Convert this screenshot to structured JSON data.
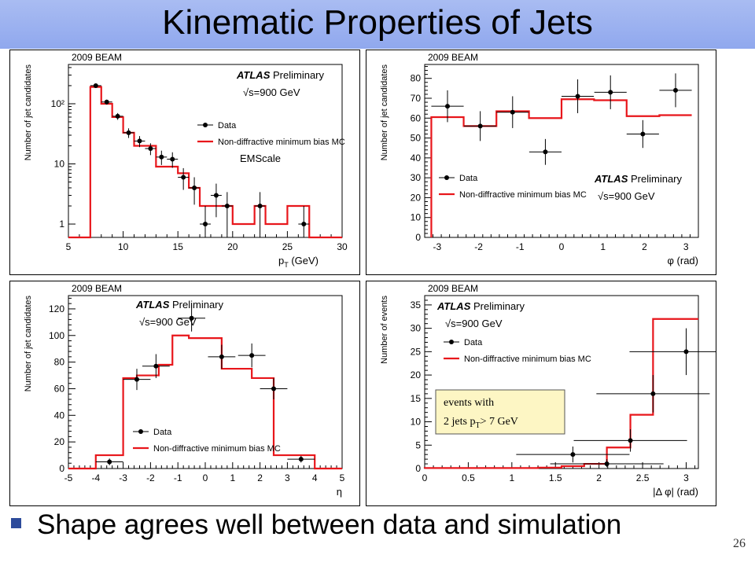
{
  "slide": {
    "title": "Kinematic Properties of Jets",
    "bullet": "Shape agrees well between data and simulation",
    "slide_number": "26"
  },
  "colors": {
    "data": "#000000",
    "mc": "#e8161b",
    "title_bg": "#94abee",
    "bullet": "#2d4b9b",
    "annotation_bg": "#fdf6c4"
  },
  "chart_data": [
    {
      "id": "pt",
      "type": "histogram",
      "header": "2009 BEAM",
      "experiment": "ATLAS",
      "status": "Preliminary",
      "energy": "√s=900 GeV",
      "note": "EMScale",
      "xlabel": "p_T (GeV)",
      "ylabel": "Number of jet candidates",
      "xlim": [
        5,
        30
      ],
      "ylim": [
        0.6,
        450
      ],
      "yscale": "log",
      "xticks": [
        5,
        10,
        15,
        20,
        25,
        30
      ],
      "yticks": [
        1,
        10,
        100
      ],
      "ytick_labels": [
        "1",
        "10",
        "10²"
      ],
      "legend": {
        "position": "right",
        "data": "Data",
        "mc": "Non-diffractive minimum bias MC"
      },
      "mc_edges": [
        7,
        8,
        9,
        10,
        11,
        12,
        13,
        14,
        15,
        16,
        17,
        18,
        19,
        20,
        21,
        22,
        23,
        24,
        25,
        26,
        27
      ],
      "mc_values": [
        190,
        100,
        60,
        33,
        20,
        20,
        9,
        9,
        7,
        4,
        2,
        2,
        2,
        1,
        1,
        2,
        1,
        1,
        2,
        2
      ],
      "data": [
        {
          "x": 7.5,
          "y": 200,
          "ylo": 188,
          "yhi": 212
        },
        {
          "x": 8.5,
          "y": 107,
          "ylo": 97,
          "yhi": 117
        },
        {
          "x": 9.5,
          "y": 62,
          "ylo": 54,
          "yhi": 70
        },
        {
          "x": 10.5,
          "y": 33,
          "ylo": 27,
          "yhi": 39
        },
        {
          "x": 11.5,
          "y": 24,
          "ylo": 19,
          "yhi": 29
        },
        {
          "x": 12.5,
          "y": 18,
          "ylo": 14,
          "yhi": 22
        },
        {
          "x": 13.5,
          "y": 13,
          "ylo": 9.6,
          "yhi": 16.6
        },
        {
          "x": 14.5,
          "y": 12,
          "ylo": 8.6,
          "yhi": 15.6
        },
        {
          "x": 15.5,
          "y": 6,
          "ylo": 3.7,
          "yhi": 8.5
        },
        {
          "x": 16.5,
          "y": 4,
          "ylo": 2.1,
          "yhi": 6
        },
        {
          "x": 17.5,
          "y": 1,
          "ylo": 0.6,
          "yhi": 2
        },
        {
          "x": 18.5,
          "y": 3,
          "ylo": 1.3,
          "yhi": 4.7
        },
        {
          "x": 19.5,
          "y": 2,
          "ylo": 0.6,
          "yhi": 3.4
        },
        {
          "x": 22.5,
          "y": 2,
          "ylo": 0.6,
          "yhi": 3.4
        },
        {
          "x": 26.5,
          "y": 1,
          "ylo": 0.6,
          "yhi": 2
        }
      ]
    },
    {
      "id": "phi",
      "type": "histogram",
      "header": "2009 BEAM",
      "experiment": "ATLAS",
      "status": "Preliminary",
      "energy": "√s=900 GeV",
      "xlabel": "φ (rad)",
      "ylabel": "Number of jet candidates",
      "xlim": [
        -3.3,
        3.3
      ],
      "ylim": [
        0,
        87
      ],
      "yscale": "linear",
      "xticks": [
        -3,
        -2,
        -1,
        0,
        1,
        2,
        3
      ],
      "yticks": [
        0,
        10,
        20,
        30,
        40,
        50,
        60,
        70,
        80
      ],
      "legend": {
        "position": "lower-left",
        "data": "Data",
        "mc": "Non-diffractive minimum bias MC"
      },
      "mc_edges": [
        -3.14,
        -2.36,
        -1.57,
        -0.785,
        0,
        0.785,
        1.57,
        2.36,
        3.14
      ],
      "mc_values": [
        60.5,
        56,
        63.5,
        60,
        69.5,
        69,
        61,
        61.5
      ],
      "data": [
        {
          "x": -2.75,
          "y": 66,
          "ylo": 58,
          "yhi": 74
        },
        {
          "x": -1.96,
          "y": 56,
          "ylo": 48.5,
          "yhi": 63.5
        },
        {
          "x": -1.18,
          "y": 63,
          "ylo": 55,
          "yhi": 71
        },
        {
          "x": -0.39,
          "y": 43,
          "ylo": 36.5,
          "yhi": 49.5
        },
        {
          "x": 0.39,
          "y": 71,
          "ylo": 62.5,
          "yhi": 79.5
        },
        {
          "x": 1.18,
          "y": 73,
          "ylo": 64.5,
          "yhi": 81.5
        },
        {
          "x": 1.96,
          "y": 52,
          "ylo": 45,
          "yhi": 59
        },
        {
          "x": 2.75,
          "y": 74,
          "ylo": 65.5,
          "yhi": 82.5
        }
      ]
    },
    {
      "id": "eta",
      "type": "histogram",
      "header": "2009 BEAM",
      "experiment": "ATLAS",
      "status": "Preliminary",
      "energy": "√s=900 GeV",
      "xlabel": "η",
      "ylabel": "Number of jet candidates",
      "xlim": [
        -5,
        5
      ],
      "ylim": [
        0,
        130
      ],
      "yscale": "linear",
      "xticks": [
        -5,
        -4,
        -3,
        -2,
        -1,
        0,
        1,
        2,
        3,
        4,
        5
      ],
      "yticks": [
        0,
        20,
        40,
        60,
        80,
        100,
        120
      ],
      "legend": {
        "position": "lower-left",
        "data": "Data",
        "mc": "Non-diffractive minimum bias MC"
      },
      "mc_edges": [
        -4,
        -3,
        -2.5,
        -1.7,
        -1.2,
        -0.6,
        0,
        0.6,
        1.2,
        1.7,
        2.5,
        3.2,
        4
      ],
      "mc_values": [
        10,
        68,
        70,
        78,
        100,
        98,
        98,
        75,
        75,
        68,
        10,
        10
      ],
      "data": [
        {
          "x": -3.5,
          "y": 5,
          "ylo": 2.5,
          "yhi": 7.5
        },
        {
          "x": -2.5,
          "y": 67,
          "ylo": 59,
          "yhi": 75
        },
        {
          "x": -1.8,
          "y": 77,
          "ylo": 68,
          "yhi": 86
        },
        {
          "x": -0.5,
          "y": 113,
          "ylo": 103,
          "yhi": 123
        },
        {
          "x": 0.6,
          "y": 84,
          "ylo": 75,
          "yhi": 93
        },
        {
          "x": 1.7,
          "y": 85,
          "ylo": 76,
          "yhi": 94
        },
        {
          "x": 2.5,
          "y": 60,
          "ylo": 52,
          "yhi": 68
        },
        {
          "x": 3.5,
          "y": 7,
          "ylo": 4.5,
          "yhi": 9.5
        }
      ]
    },
    {
      "id": "dphi",
      "type": "histogram",
      "header": "2009 BEAM",
      "experiment": "ATLAS",
      "status": "Preliminary",
      "energy": "√s=900 GeV",
      "xlabel": "|Δ φ| (rad)",
      "ylabel": "Number of events",
      "xlim": [
        0,
        3.14
      ],
      "ylim": [
        0,
        37
      ],
      "yscale": "linear",
      "xticks": [
        0,
        0.5,
        1,
        1.5,
        2,
        2.5,
        3
      ],
      "yticks": [
        0,
        5,
        10,
        15,
        20,
        25,
        30,
        35
      ],
      "legend": {
        "position": "upper-left",
        "data": "Data",
        "mc": "Non-diffractive minimum bias MC"
      },
      "annotation_lines": [
        "events with",
        "2 jets p",
        "T",
        "> 7 GeV"
      ],
      "mc_edges": [
        0,
        1.3,
        1.57,
        1.83,
        2.09,
        2.36,
        2.62,
        2.88,
        3.14
      ],
      "mc_values": [
        0.1,
        0.2,
        0.5,
        1,
        4.5,
        11.5,
        32,
        32
      ],
      "data": [
        {
          "x": 1.7,
          "y": 3,
          "ylo": 1.3,
          "yhi": 4.7
        },
        {
          "x": 2.09,
          "y": 1,
          "ylo": 0.3,
          "yhi": 2
        },
        {
          "x": 2.36,
          "y": 6,
          "ylo": 3.6,
          "yhi": 8.4
        },
        {
          "x": 2.62,
          "y": 16,
          "ylo": 12,
          "yhi": 20
        },
        {
          "x": 3.0,
          "y": 25,
          "ylo": 20,
          "yhi": 30
        }
      ]
    }
  ]
}
